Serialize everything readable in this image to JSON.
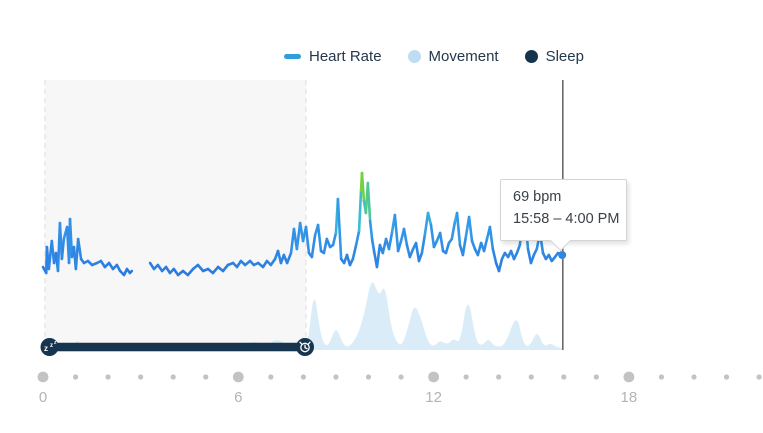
{
  "legend": {
    "items": [
      {
        "label": "Heart Rate",
        "marker": "line",
        "color": "#2f9edb"
      },
      {
        "label": "Movement",
        "marker": "circle",
        "color": "#bedcf2"
      },
      {
        "label": "Sleep",
        "marker": "circle",
        "color": "#16344e"
      }
    ]
  },
  "tooltip": {
    "value": "69 bpm",
    "range": "15:58 – 4:00 PM"
  },
  "chart_data": {
    "type": "line",
    "title": "",
    "x_axis": {
      "unit": "hour",
      "range": [
        0,
        23.5
      ],
      "ticks_minor": [
        0,
        1,
        2,
        3,
        4,
        5,
        6,
        7,
        8,
        9,
        10,
        11,
        12,
        13,
        14,
        15,
        16,
        17,
        18,
        19,
        20,
        21,
        22
      ],
      "ticks_major": [
        0,
        6,
        12,
        18
      ],
      "labels": [
        "0",
        "6",
        "12",
        "18"
      ],
      "grid": false
    },
    "cursor": {
      "hour": 15.97,
      "value_bpm": 69,
      "label": "69 bpm",
      "time_range": "15:58 – 4:00 PM"
    },
    "series": [
      {
        "name": "Heart Rate",
        "type": "line",
        "unit": "bpm",
        "color_scale": [
          {
            "bpm": 60,
            "color": "#2b7adf"
          },
          {
            "bpm": 82,
            "color": "#3498e8"
          },
          {
            "bpm": 92,
            "color": "#3cc0cf"
          },
          {
            "bpm": 100,
            "color": "#63cf62"
          },
          {
            "bpm": 110,
            "color": "#8ad414"
          }
        ],
        "points": [
          [
            0,
            63
          ],
          [
            0.1,
            60
          ],
          [
            0.12,
            73
          ],
          [
            0.18,
            62
          ],
          [
            0.27,
            76
          ],
          [
            0.34,
            65
          ],
          [
            0.4,
            70
          ],
          [
            0.46,
            61
          ],
          [
            0.52,
            85
          ],
          [
            0.58,
            67
          ],
          [
            0.64,
            77
          ],
          [
            0.74,
            83
          ],
          [
            0.8,
            65
          ],
          [
            0.83,
            87
          ],
          [
            0.89,
            68
          ],
          [
            0.95,
            73
          ],
          [
            1.01,
            62
          ],
          [
            1.08,
            77
          ],
          [
            1.17,
            67
          ],
          [
            1.26,
            65
          ],
          [
            1.38,
            66
          ],
          [
            1.51,
            64
          ],
          [
            1.66,
            65
          ],
          [
            1.78,
            66
          ],
          [
            1.9,
            63
          ],
          [
            2.03,
            65
          ],
          [
            2.15,
            62
          ],
          [
            2.27,
            64
          ],
          [
            2.37,
            61
          ],
          [
            2.49,
            59
          ],
          [
            2.58,
            62
          ],
          [
            2.67,
            60
          ],
          [
            2.73,
            61
          ],
          [
            3.0,
            null
          ],
          [
            3.29,
            65
          ],
          [
            3.41,
            62
          ],
          [
            3.53,
            64
          ],
          [
            3.66,
            61
          ],
          [
            3.78,
            63
          ],
          [
            3.9,
            60
          ],
          [
            4.02,
            62
          ],
          [
            4.15,
            59
          ],
          [
            4.3,
            61
          ],
          [
            4.45,
            59
          ],
          [
            4.61,
            62
          ],
          [
            4.76,
            64
          ],
          [
            4.92,
            61
          ],
          [
            5.07,
            62
          ],
          [
            5.22,
            60
          ],
          [
            5.38,
            63
          ],
          [
            5.53,
            61
          ],
          [
            5.68,
            64
          ],
          [
            5.84,
            65
          ],
          [
            5.96,
            63
          ],
          [
            6.08,
            66
          ],
          [
            6.21,
            64
          ],
          [
            6.36,
            66
          ],
          [
            6.48,
            64
          ],
          [
            6.61,
            65
          ],
          [
            6.76,
            63
          ],
          [
            6.88,
            66
          ],
          [
            7.0,
            64
          ],
          [
            7.13,
            67
          ],
          [
            7.22,
            71
          ],
          [
            7.31,
            65
          ],
          [
            7.4,
            69
          ],
          [
            7.5,
            65
          ],
          [
            7.62,
            70
          ],
          [
            7.71,
            82
          ],
          [
            7.8,
            72
          ],
          [
            7.9,
            85
          ],
          [
            7.99,
            76
          ],
          [
            8.08,
            83
          ],
          [
            8.17,
            70
          ],
          [
            8.26,
            68
          ],
          [
            8.36,
            79
          ],
          [
            8.45,
            84
          ],
          [
            8.54,
            71
          ],
          [
            8.63,
            70
          ],
          [
            8.72,
            77
          ],
          [
            8.82,
            73
          ],
          [
            8.91,
            74
          ],
          [
            9.0,
            80
          ],
          [
            9.06,
            97
          ],
          [
            9.16,
            67
          ],
          [
            9.25,
            65
          ],
          [
            9.34,
            69
          ],
          [
            9.43,
            64
          ],
          [
            9.52,
            67
          ],
          [
            9.62,
            74
          ],
          [
            9.71,
            81
          ],
          [
            9.77,
            101
          ],
          [
            9.8,
            110
          ],
          [
            9.86,
            96
          ],
          [
            9.92,
            90
          ],
          [
            9.98,
            105
          ],
          [
            10.05,
            86
          ],
          [
            10.11,
            77
          ],
          [
            10.17,
            71
          ],
          [
            10.26,
            63
          ],
          [
            10.35,
            74
          ],
          [
            10.44,
            70
          ],
          [
            10.54,
            77
          ],
          [
            10.63,
            72
          ],
          [
            10.72,
            80
          ],
          [
            10.81,
            89
          ],
          [
            10.91,
            71
          ],
          [
            11.0,
            76
          ],
          [
            11.09,
            82
          ],
          [
            11.18,
            74
          ],
          [
            11.27,
            68
          ],
          [
            11.37,
            72
          ],
          [
            11.46,
            75
          ],
          [
            11.55,
            66
          ],
          [
            11.64,
            70
          ],
          [
            11.73,
            79
          ],
          [
            11.83,
            90
          ],
          [
            11.92,
            84
          ],
          [
            12.01,
            73
          ],
          [
            12.1,
            76
          ],
          [
            12.2,
            80
          ],
          [
            12.29,
            71
          ],
          [
            12.38,
            70
          ],
          [
            12.47,
            75
          ],
          [
            12.56,
            77
          ],
          [
            12.66,
            86
          ],
          [
            12.72,
            90
          ],
          [
            12.81,
            74
          ],
          [
            12.9,
            69
          ],
          [
            12.99,
            78
          ],
          [
            13.09,
            88
          ],
          [
            13.18,
            76
          ],
          [
            13.27,
            72
          ],
          [
            13.36,
            69
          ],
          [
            13.46,
            75
          ],
          [
            13.55,
            71
          ],
          [
            13.64,
            77
          ],
          [
            13.73,
            83
          ],
          [
            13.82,
            72
          ],
          [
            13.92,
            65
          ],
          [
            14.01,
            61
          ],
          [
            14.1,
            67
          ],
          [
            14.19,
            70
          ],
          [
            14.29,
            68
          ],
          [
            14.38,
            71
          ],
          [
            14.47,
            67
          ],
          [
            14.56,
            70
          ],
          [
            14.65,
            74
          ],
          [
            14.75,
            87
          ],
          [
            14.81,
            89
          ],
          [
            14.9,
            72
          ],
          [
            14.99,
            65
          ],
          [
            15.08,
            69
          ],
          [
            15.17,
            72
          ],
          [
            15.27,
            80
          ],
          [
            15.36,
            70
          ],
          [
            15.45,
            67
          ],
          [
            15.54,
            69
          ],
          [
            15.63,
            66
          ],
          [
            15.73,
            68
          ],
          [
            15.82,
            70
          ],
          [
            15.95,
            69
          ]
        ]
      },
      {
        "name": "Movement",
        "type": "area",
        "unit": "relative intensity 0-100",
        "color": "#d9ecf8",
        "points": [
          [
            0,
            0
          ],
          [
            0.9,
            0
          ],
          [
            1.05,
            12
          ],
          [
            1.2,
            1
          ],
          [
            3,
            0
          ],
          [
            6.2,
            2
          ],
          [
            6.5,
            10
          ],
          [
            6.8,
            3
          ],
          [
            7.2,
            12
          ],
          [
            7.5,
            4
          ],
          [
            7.8,
            2
          ],
          [
            8.05,
            4
          ],
          [
            8.15,
            10
          ],
          [
            8.33,
            62
          ],
          [
            8.5,
            20
          ],
          [
            8.65,
            4
          ],
          [
            8.8,
            6
          ],
          [
            9.0,
            24
          ],
          [
            9.18,
            8
          ],
          [
            9.35,
            2
          ],
          [
            9.6,
            10
          ],
          [
            9.85,
            32
          ],
          [
            10.1,
            75
          ],
          [
            10.32,
            52
          ],
          [
            10.5,
            67
          ],
          [
            10.68,
            25
          ],
          [
            10.85,
            8
          ],
          [
            11.02,
            4
          ],
          [
            11.2,
            20
          ],
          [
            11.4,
            47
          ],
          [
            11.6,
            33
          ],
          [
            11.82,
            8
          ],
          [
            12.0,
            3
          ],
          [
            12.2,
            10
          ],
          [
            12.42,
            5
          ],
          [
            12.62,
            12
          ],
          [
            12.82,
            6
          ],
          [
            13.05,
            58
          ],
          [
            13.3,
            8
          ],
          [
            13.5,
            4
          ],
          [
            13.68,
            12
          ],
          [
            13.88,
            3
          ],
          [
            14.2,
            4
          ],
          [
            14.55,
            38
          ],
          [
            14.75,
            6
          ],
          [
            14.95,
            3
          ],
          [
            15.18,
            20
          ],
          [
            15.38,
            3
          ],
          [
            15.58,
            7
          ],
          [
            15.78,
            3
          ],
          [
            15.95,
            2
          ]
        ]
      },
      {
        "name": "Sleep",
        "type": "range",
        "start_hour": 0.2,
        "end_hour": 8.08,
        "color": "#17354f",
        "region_fill": "#f7f7f7",
        "start_icon": "zzz-sleep-icon",
        "end_icon": "alarm-clock-icon"
      }
    ]
  }
}
